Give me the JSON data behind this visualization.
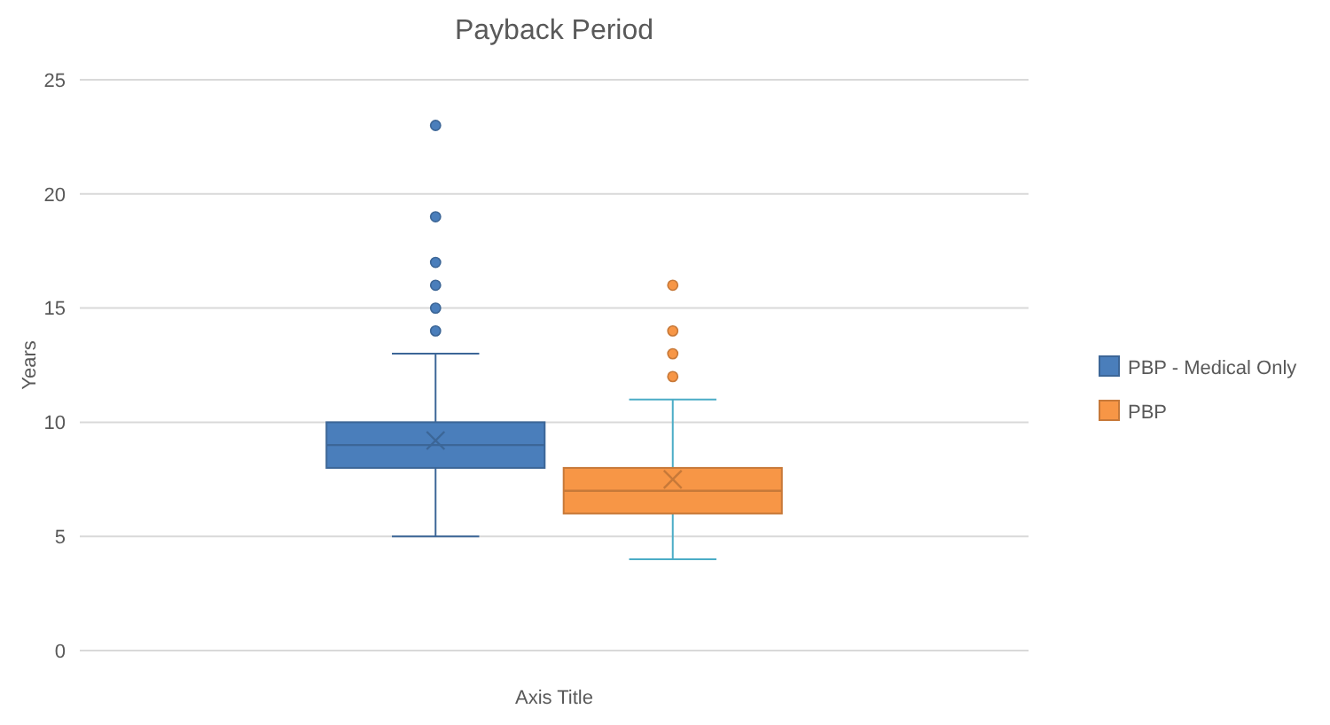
{
  "chart_data": {
    "type": "box",
    "title": "Payback Period",
    "xlabel": "Axis Title",
    "ylabel": "Years",
    "categories": [
      null
    ],
    "ylim": [
      0,
      25
    ],
    "yticks": [
      0,
      5,
      10,
      15,
      20,
      25
    ],
    "grid": "y",
    "legend": "right",
    "series": [
      {
        "name": "PBP - Medical Only",
        "color": "#4a7ebb",
        "boxes": [
          {
            "low": 5,
            "q1": 8,
            "median": 9,
            "q3": 10,
            "high": 13,
            "mean": 9.2,
            "outliers": [
              14,
              15,
              16,
              17,
              19,
              23
            ]
          }
        ]
      },
      {
        "name": "PBP",
        "color": "#f79646",
        "boxes": [
          {
            "low": 4,
            "q1": 6,
            "median": 7,
            "q3": 8,
            "high": 11,
            "mean": 7.5,
            "outliers": [
              12,
              13,
              14,
              16
            ]
          }
        ]
      }
    ]
  }
}
